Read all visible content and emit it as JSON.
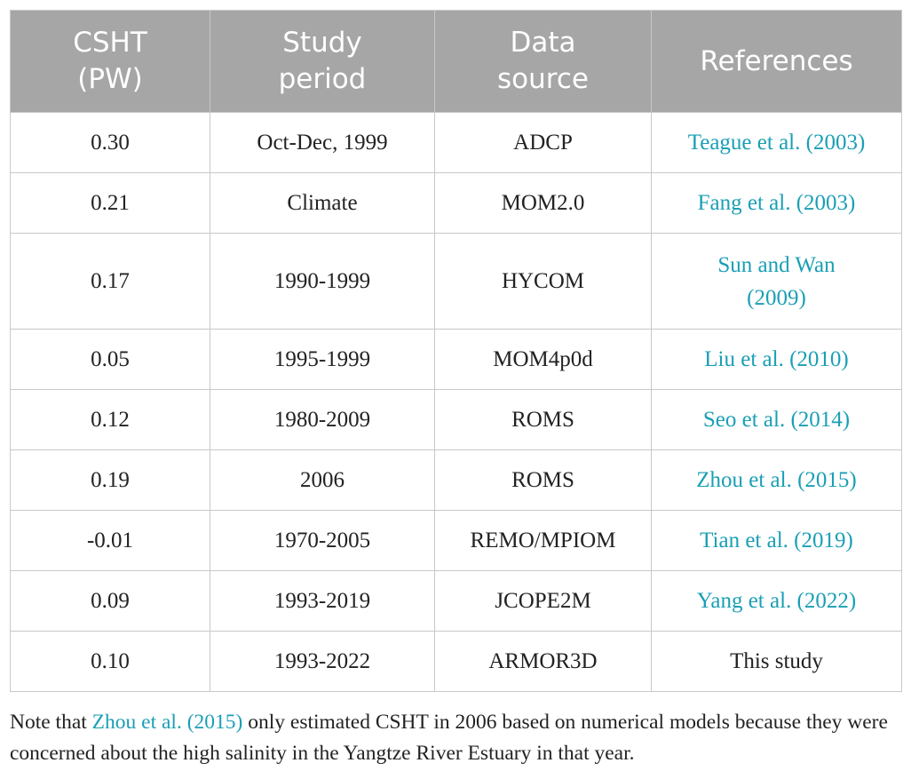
{
  "table": {
    "header": [
      "CSHT (PW)",
      "Study period",
      "Data source",
      "References"
    ],
    "rows": [
      [
        "0.30",
        "Oct-Dec, 1999",
        "ADCP",
        "Teague et al. (2003)"
      ],
      [
        "0.21",
        "Climate",
        "MOM2.0",
        "Fang et al. (2003)"
      ],
      [
        "0.17",
        "1990-1999",
        "HYCOM",
        "Sun and Wan (2009)"
      ],
      [
        "0.05",
        "1995-1999",
        "MOM4p0d",
        "Liu et al. (2010)"
      ],
      [
        "0.12",
        "1980-2009",
        "ROMS",
        "Seo et al. (2014)"
      ],
      [
        "0.19",
        "2006",
        "ROMS",
        "Zhou et al. (2015)"
      ],
      [
        "-0.01",
        "1970-2005",
        "REMO/MPIOM",
        "Tian et al. (2019)"
      ],
      [
        "0.09",
        "1993-2019",
        "JCOPE2M",
        "Yang et al. (2022)"
      ],
      [
        "0.10",
        "1993-2022",
        "ARMOR3D",
        "This study"
      ]
    ]
  },
  "note": {
    "prefix": "Note that ",
    "link": "Zhou et al. (2015)",
    "suffix": " only estimated CSHT in 2006 based on numerical models because they were concerned about the high salinity in the Yangtze River Estuary in that year."
  }
}
